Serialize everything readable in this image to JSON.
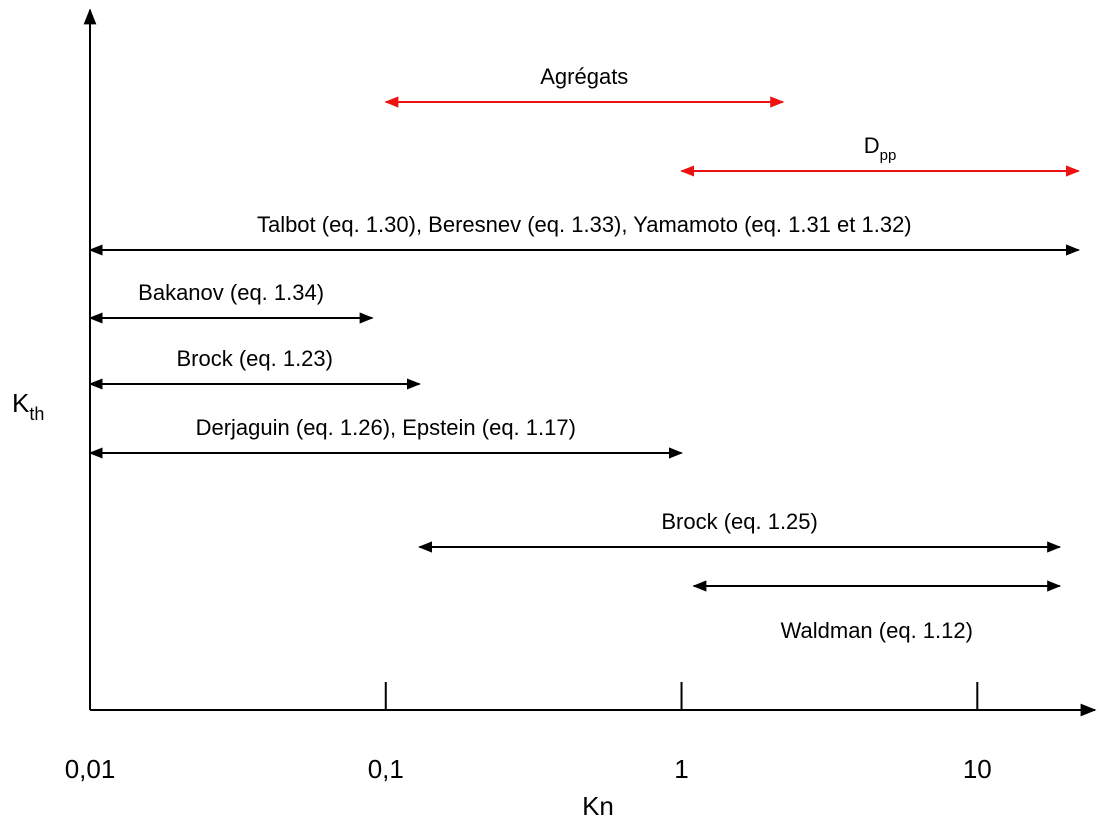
{
  "chart_data": {
    "type": "range",
    "xlabel": "Kn",
    "ylabel": {
      "text": "K",
      "sub": "th"
    },
    "xscale": "log",
    "xlim": [
      0.01,
      25
    ],
    "xticks": [
      {
        "value": 0.01,
        "label": "0,01"
      },
      {
        "value": 0.1,
        "label": "0,1"
      },
      1,
      10
    ],
    "series": [
      {
        "name": "Agrégats",
        "start": 0.1,
        "end": 2.2,
        "color": "#ee1111"
      },
      {
        "name": {
          "text": "D",
          "sub": "pp"
        },
        "start": 1,
        "end": 22,
        "color": "#ee1111"
      },
      {
        "name": "Talbot (eq. 1.30), Beresnev (eq. 1.33), Yamamoto (eq. 1.31 et 1.32)",
        "start": 0.01,
        "end": 22,
        "color": "#000000"
      },
      {
        "name": "Bakanov (eq. 1.34)",
        "start": 0.01,
        "end": 0.09,
        "color": "#000000"
      },
      {
        "name": "Brock (eq. 1.23)",
        "start": 0.01,
        "end": 0.13,
        "color": "#000000"
      },
      {
        "name": "Derjaguin (eq. 1.26), Epstein (eq. 1.17)",
        "start": 0.01,
        "end": 1,
        "color": "#000000"
      },
      {
        "name": "Brock (eq. 1.25)",
        "start": 0.13,
        "end": 19,
        "color": "#000000"
      },
      {
        "name": "Waldman (eq. 1.12)",
        "start": 1.1,
        "end": 19,
        "color": "#000000"
      }
    ]
  }
}
